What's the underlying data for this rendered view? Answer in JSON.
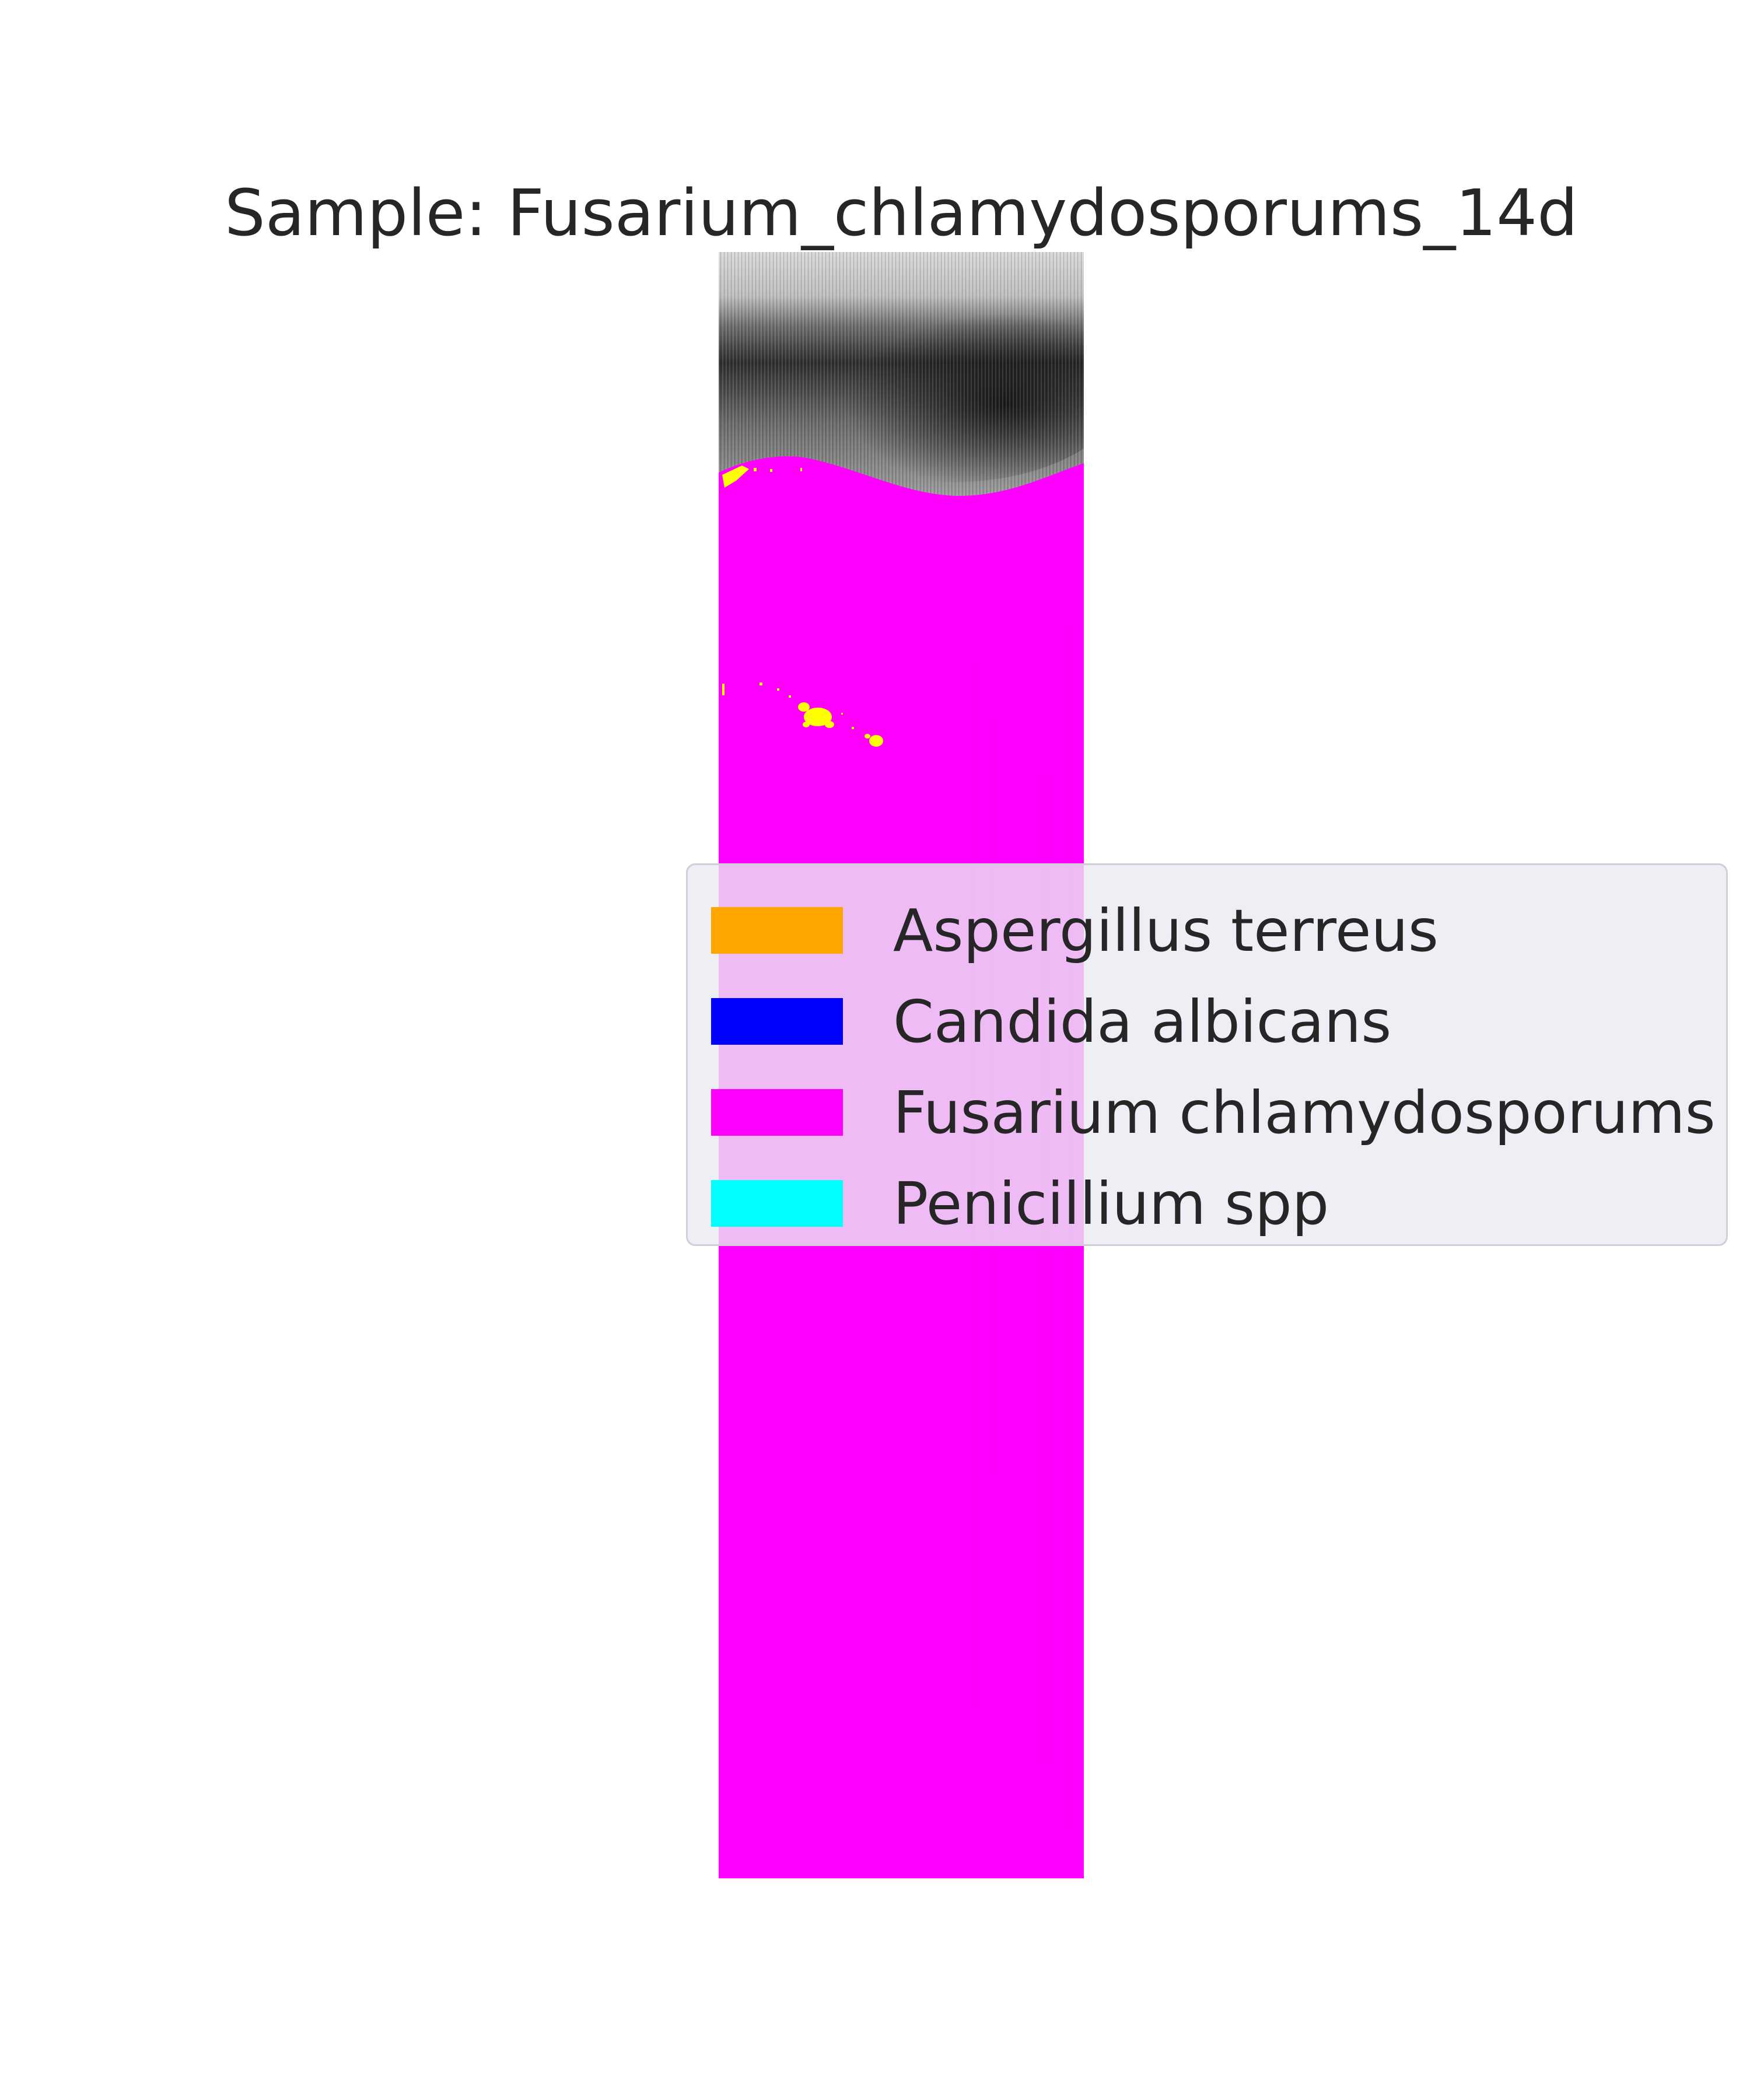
{
  "figure": {
    "title": "Sample: Fusarium_chlamydosporums_14d"
  },
  "legend": {
    "items": [
      {
        "label": "Aspergillus terreus",
        "color": "#ffa500"
      },
      {
        "label": "Candida albicans",
        "color": "#0000ff"
      },
      {
        "label": "Fusarium chlamydosporums",
        "color": "#ff00ff"
      },
      {
        "label": "Penicillium spp",
        "color": "#00ffff"
      }
    ]
  },
  "image": {
    "colors": {
      "dominant_class": "#ff00ff",
      "highlight_spots": "#ffff00",
      "background_grayscale_top": "#8c8c8c"
    }
  }
}
